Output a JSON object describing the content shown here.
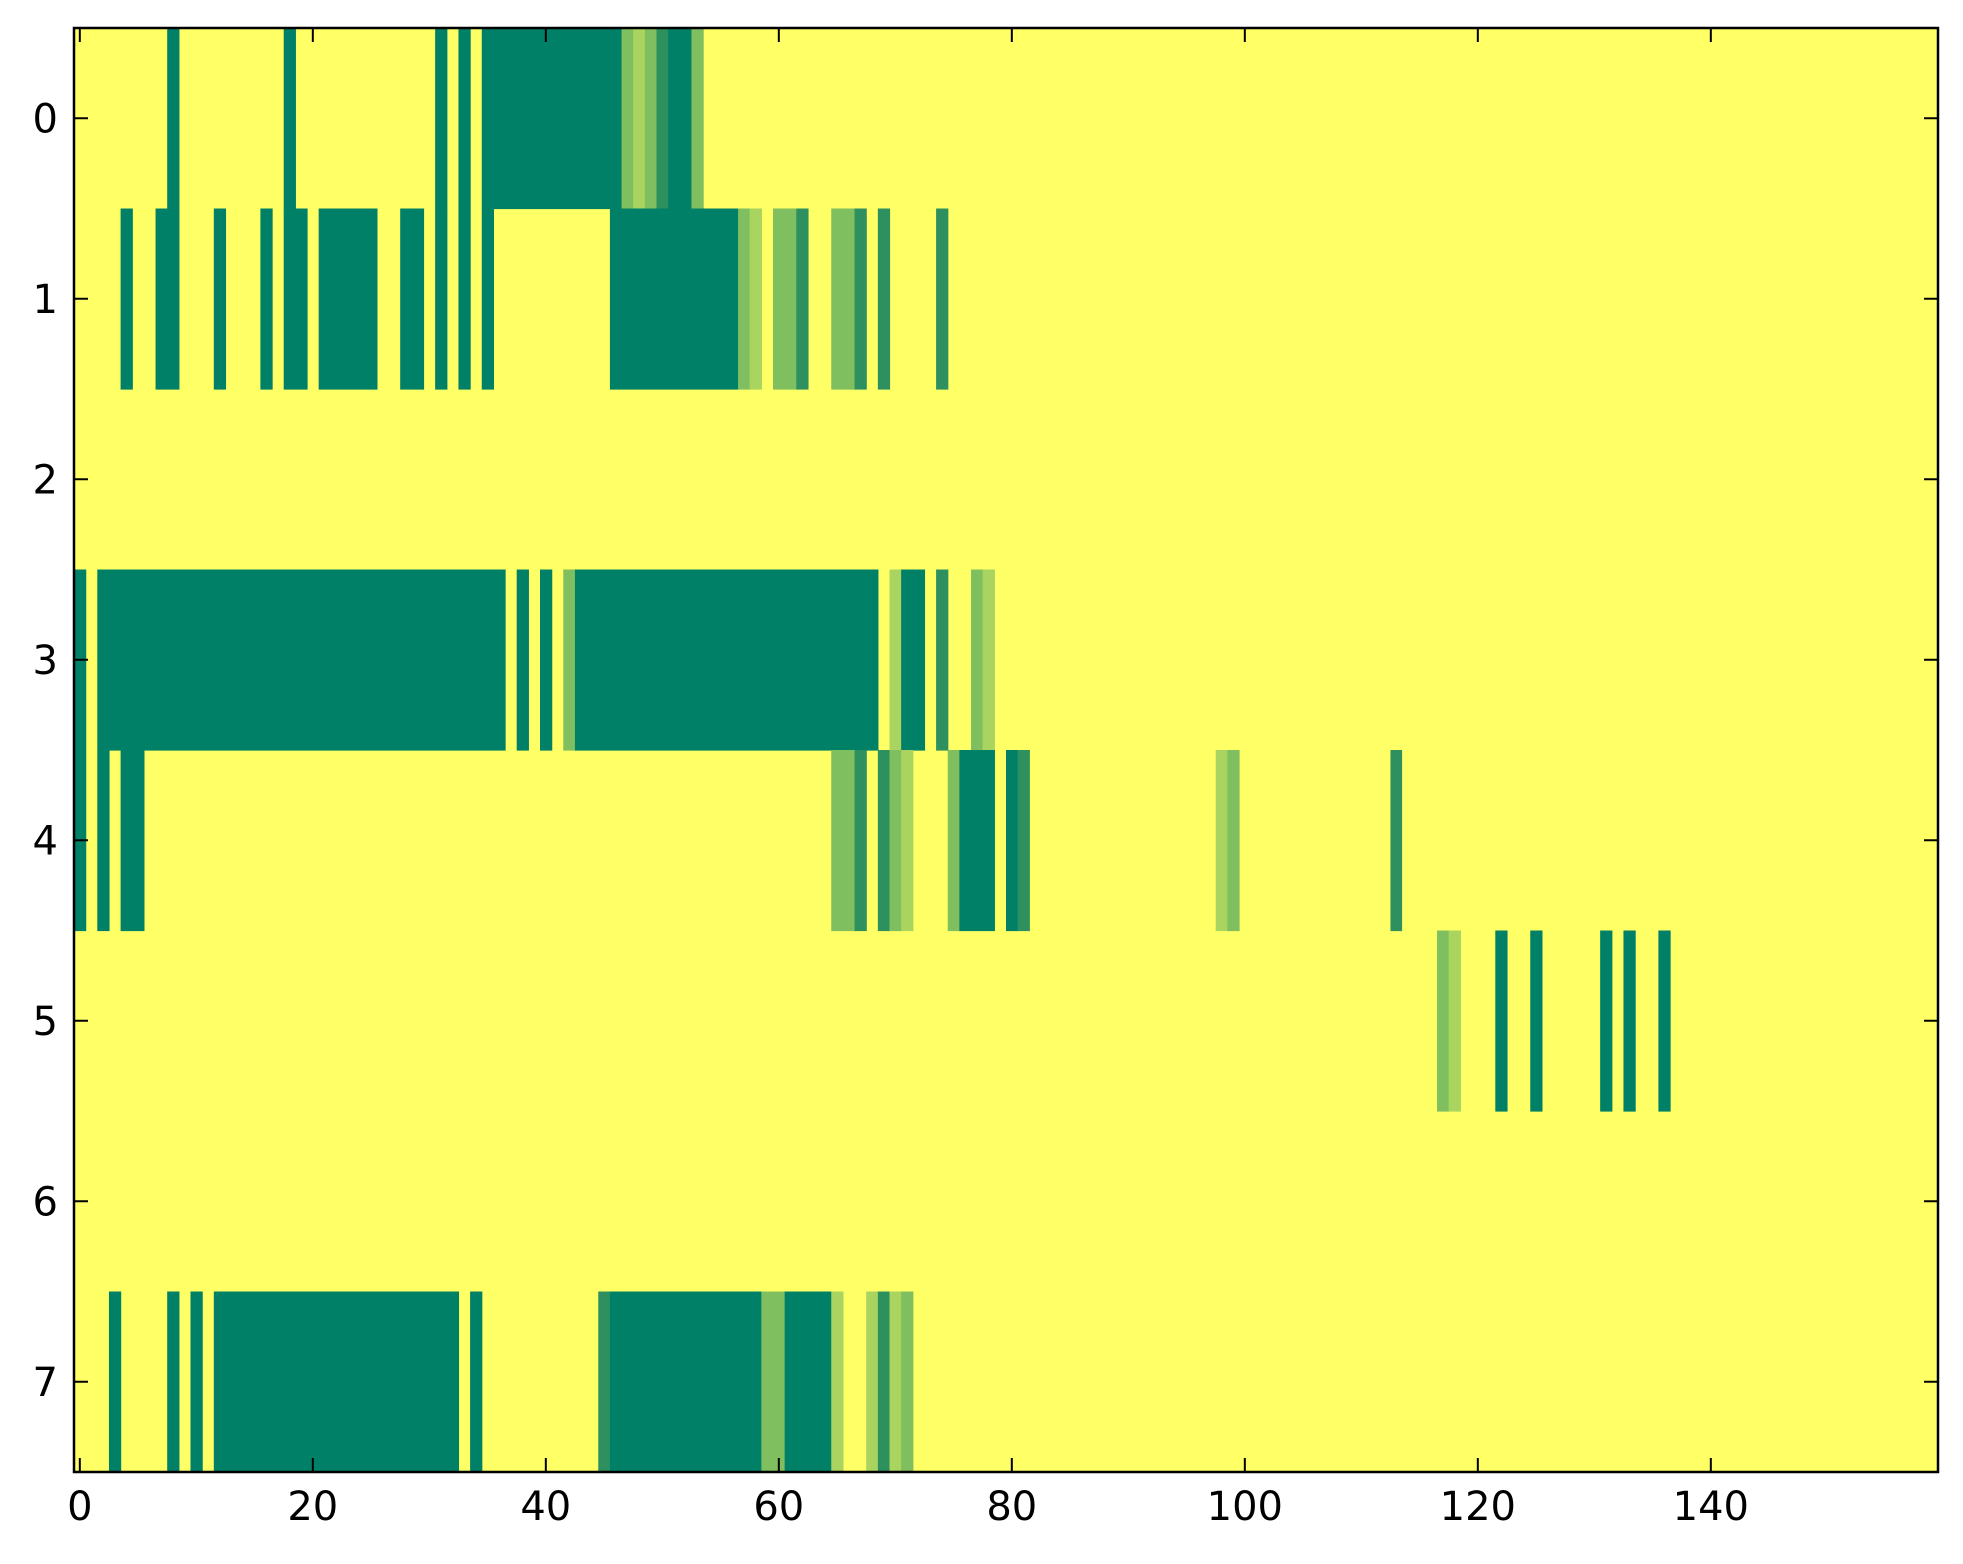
{
  "chart_data": {
    "type": "heatmap",
    "title": "",
    "xlabel": "",
    "ylabel": "",
    "xlim": [
      -0.5,
      159.5
    ],
    "ylim": [
      7.5,
      -0.5
    ],
    "grid": false,
    "colormap": "summer",
    "colors": {
      "background": "#ffff66",
      "level_1": "#ffff66",
      "level_2": "#a8d45f",
      "level_3": "#7fbf5f",
      "level_4": "#2e8f5f",
      "level_5": "#008066"
    },
    "x_ticks": [
      {
        "value": 0,
        "label": "0"
      },
      {
        "value": 20,
        "label": "20"
      },
      {
        "value": 40,
        "label": "40"
      },
      {
        "value": 60,
        "label": "60"
      },
      {
        "value": 80,
        "label": "80"
      },
      {
        "value": 100,
        "label": "100"
      },
      {
        "value": 120,
        "label": "120"
      },
      {
        "value": 140,
        "label": "140"
      }
    ],
    "y_ticks": [
      {
        "value": 0,
        "label": "0"
      },
      {
        "value": 1,
        "label": "1"
      },
      {
        "value": 2,
        "label": "2"
      },
      {
        "value": 3,
        "label": "3"
      },
      {
        "value": 4,
        "label": "4"
      },
      {
        "value": 5,
        "label": "5"
      },
      {
        "value": 6,
        "label": "6"
      },
      {
        "value": 7,
        "label": "7"
      }
    ],
    "rows": [
      {
        "row": 0,
        "segments": [
          {
            "start": 8,
            "end": 8,
            "level": 5
          },
          {
            "start": 18,
            "end": 18,
            "level": 5
          },
          {
            "start": 31,
            "end": 31,
            "level": 5
          },
          {
            "start": 33,
            "end": 33,
            "level": 5
          },
          {
            "start": 35,
            "end": 46,
            "level": 5
          },
          {
            "start": 47,
            "end": 47,
            "level": 3
          },
          {
            "start": 48,
            "end": 48,
            "level": 2
          },
          {
            "start": 49,
            "end": 49,
            "level": 3
          },
          {
            "start": 50,
            "end": 50,
            "level": 4
          },
          {
            "start": 51,
            "end": 52,
            "level": 5
          },
          {
            "start": 53,
            "end": 53,
            "level": 3
          }
        ]
      },
      {
        "row": 1,
        "segments": [
          {
            "start": 4,
            "end": 4,
            "level": 5
          },
          {
            "start": 7,
            "end": 8,
            "level": 5
          },
          {
            "start": 12,
            "end": 12,
            "level": 5
          },
          {
            "start": 16,
            "end": 16,
            "level": 5
          },
          {
            "start": 18,
            "end": 19,
            "level": 5
          },
          {
            "start": 21,
            "end": 25,
            "level": 5
          },
          {
            "start": 28,
            "end": 29,
            "level": 5
          },
          {
            "start": 31,
            "end": 31,
            "level": 5
          },
          {
            "start": 33,
            "end": 33,
            "level": 5
          },
          {
            "start": 35,
            "end": 35,
            "level": 5
          },
          {
            "start": 46,
            "end": 56,
            "level": 5
          },
          {
            "start": 57,
            "end": 57,
            "level": 3
          },
          {
            "start": 58,
            "end": 58,
            "level": 2
          },
          {
            "start": 60,
            "end": 60,
            "level": 3
          },
          {
            "start": 61,
            "end": 61,
            "level": 3
          },
          {
            "start": 62,
            "end": 62,
            "level": 4
          },
          {
            "start": 65,
            "end": 66,
            "level": 3
          },
          {
            "start": 67,
            "end": 67,
            "level": 4
          },
          {
            "start": 69,
            "end": 69,
            "level": 4
          },
          {
            "start": 74,
            "end": 74,
            "level": 4
          }
        ]
      },
      {
        "row": 2,
        "segments": []
      },
      {
        "row": 3,
        "segments": [
          {
            "start": 0,
            "end": 0,
            "level": 5
          },
          {
            "start": 2,
            "end": 36,
            "level": 5
          },
          {
            "start": 38,
            "end": 38,
            "level": 5
          },
          {
            "start": 40,
            "end": 40,
            "level": 5
          },
          {
            "start": 42,
            "end": 42,
            "level": 3
          },
          {
            "start": 43,
            "end": 68,
            "level": 5
          },
          {
            "start": 70,
            "end": 70,
            "level": 2
          },
          {
            "start": 71,
            "end": 72,
            "level": 5
          },
          {
            "start": 74,
            "end": 74,
            "level": 4
          },
          {
            "start": 77,
            "end": 77,
            "level": 3
          },
          {
            "start": 78,
            "end": 78,
            "level": 2
          }
        ]
      },
      {
        "row": 4,
        "segments": [
          {
            "start": 0,
            "end": 0,
            "level": 5
          },
          {
            "start": 2,
            "end": 2,
            "level": 5
          },
          {
            "start": 4,
            "end": 5,
            "level": 5
          },
          {
            "start": 65,
            "end": 66,
            "level": 3
          },
          {
            "start": 67,
            "end": 67,
            "level": 4
          },
          {
            "start": 69,
            "end": 69,
            "level": 4
          },
          {
            "start": 70,
            "end": 70,
            "level": 3
          },
          {
            "start": 71,
            "end": 71,
            "level": 2
          },
          {
            "start": 75,
            "end": 75,
            "level": 3
          },
          {
            "start": 76,
            "end": 78,
            "level": 5
          },
          {
            "start": 80,
            "end": 80,
            "level": 5
          },
          {
            "start": 81,
            "end": 81,
            "level": 4
          },
          {
            "start": 98,
            "end": 98,
            "level": 2
          },
          {
            "start": 99,
            "end": 99,
            "level": 3
          },
          {
            "start": 113,
            "end": 113,
            "level": 4
          },
          {
            "start": 114,
            "end": 114,
            "level": 1
          }
        ]
      },
      {
        "row": 5,
        "segments": [
          {
            "start": 117,
            "end": 117,
            "level": 3
          },
          {
            "start": 118,
            "end": 118,
            "level": 2
          },
          {
            "start": 122,
            "end": 122,
            "level": 5
          },
          {
            "start": 125,
            "end": 125,
            "level": 5
          },
          {
            "start": 131,
            "end": 131,
            "level": 5
          },
          {
            "start": 133,
            "end": 133,
            "level": 5
          },
          {
            "start": 136,
            "end": 136,
            "level": 5
          }
        ]
      },
      {
        "row": 6,
        "segments": []
      },
      {
        "row": 7,
        "segments": [
          {
            "start": 3,
            "end": 3,
            "level": 5
          },
          {
            "start": 8,
            "end": 8,
            "level": 5
          },
          {
            "start": 10,
            "end": 10,
            "level": 5
          },
          {
            "start": 12,
            "end": 32,
            "level": 5
          },
          {
            "start": 34,
            "end": 34,
            "level": 5
          },
          {
            "start": 45,
            "end": 45,
            "level": 4
          },
          {
            "start": 46,
            "end": 58,
            "level": 5
          },
          {
            "start": 59,
            "end": 60,
            "level": 3
          },
          {
            "start": 61,
            "end": 64,
            "level": 5
          },
          {
            "start": 65,
            "end": 65,
            "level": 2
          },
          {
            "start": 68,
            "end": 68,
            "level": 2
          },
          {
            "start": 69,
            "end": 69,
            "level": 4
          },
          {
            "start": 70,
            "end": 70,
            "level": 2
          },
          {
            "start": 71,
            "end": 71,
            "level": 3
          }
        ]
      }
    ]
  }
}
